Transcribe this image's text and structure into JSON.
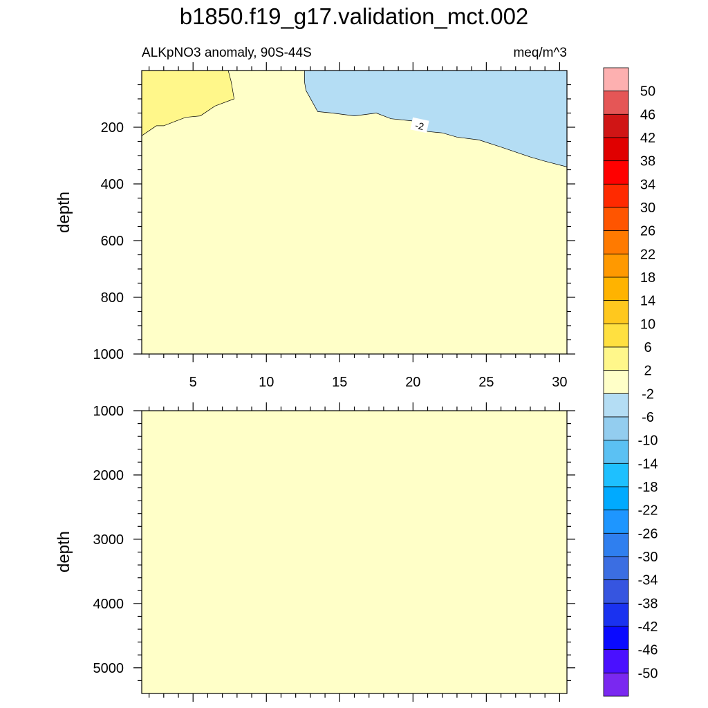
{
  "chart_data": {
    "type": "contour",
    "title": "b1850.f19_g17.validation_mct.002",
    "left_subtitle": "ALKpNO3 anomaly, 90S-44S",
    "right_subtitle": "meq/m^3",
    "contour_label": "-2",
    "x_ticks": [
      "5",
      "10",
      "15",
      "20",
      "25",
      "30"
    ],
    "x_tick_values": [
      5,
      10,
      15,
      20,
      25,
      30
    ],
    "xlim": [
      1.5,
      30.5
    ],
    "panels": [
      {
        "name": "upper",
        "ylabel": "depth",
        "ylim": [
          0,
          1000
        ],
        "y_ticks": [
          "200",
          "400",
          "600",
          "800",
          "1000"
        ],
        "y_tick_values": [
          200,
          400,
          600,
          800,
          1000
        ],
        "background_interval": "-2 to 2",
        "regions": [
          {
            "interval": "2 to 6",
            "polygon_xy": [
              [
                1.5,
                0
              ],
              [
                7.4,
                0
              ],
              [
                7.6,
                40
              ],
              [
                7.8,
                100
              ],
              [
                6.5,
                125
              ],
              [
                5.5,
                160
              ],
              [
                4.5,
                165
              ],
              [
                3,
                195
              ],
              [
                2.5,
                195
              ],
              [
                1.5,
                230
              ]
            ]
          },
          {
            "interval": "-6 to -2",
            "polygon_xy": [
              [
                12.6,
                0
              ],
              [
                30.5,
                0
              ],
              [
                30.5,
                340
              ],
              [
                29,
                320
              ],
              [
                28,
                305
              ],
              [
                26,
                270
              ],
              [
                24.5,
                245
              ],
              [
                23,
                235
              ],
              [
                22,
                220
              ],
              [
                21,
                215
              ],
              [
                20,
                178
              ],
              [
                18.5,
                170
              ],
              [
                17.5,
                150
              ],
              [
                16,
                160
              ],
              [
                14.5,
                150
              ],
              [
                13.5,
                145
              ],
              [
                12.7,
                70
              ],
              [
                12.6,
                40
              ]
            ]
          }
        ]
      },
      {
        "name": "lower",
        "ylabel": "depth",
        "ylim": [
          1000,
          5400
        ],
        "y_ticks": [
          "1000",
          "2000",
          "3000",
          "4000",
          "5000"
        ],
        "y_tick_values": [
          1000,
          2000,
          3000,
          4000,
          5000
        ],
        "background_interval": "-2 to 2",
        "regions": []
      }
    ],
    "colorbar": {
      "labels": [
        "50",
        "46",
        "42",
        "38",
        "34",
        "30",
        "26",
        "22",
        "18",
        "14",
        "10",
        "6",
        "2",
        "-2",
        "-6",
        "-10",
        "-14",
        "-18",
        "-22",
        "-26",
        "-30",
        "-34",
        "-38",
        "-42",
        "-46",
        "-50"
      ],
      "colors": [
        "#fdb0b0",
        "#e55656",
        "#d01515",
        "#e00000",
        "#ff0000",
        "#ff2a00",
        "#ff5500",
        "#ff7a00",
        "#ff9900",
        "#ffb300",
        "#ffc81e",
        "#ffe040",
        "#fff78a",
        "#ffffc8",
        "#b4ddf4",
        "#93cdef",
        "#5bc1f3",
        "#1ec0ff",
        "#00aaff",
        "#1e96ff",
        "#2f7fef",
        "#3b6ee2",
        "#3655e0",
        "#1a32f0",
        "#0a0aff",
        "#4a10ff",
        "#7a28f0"
      ]
    }
  }
}
